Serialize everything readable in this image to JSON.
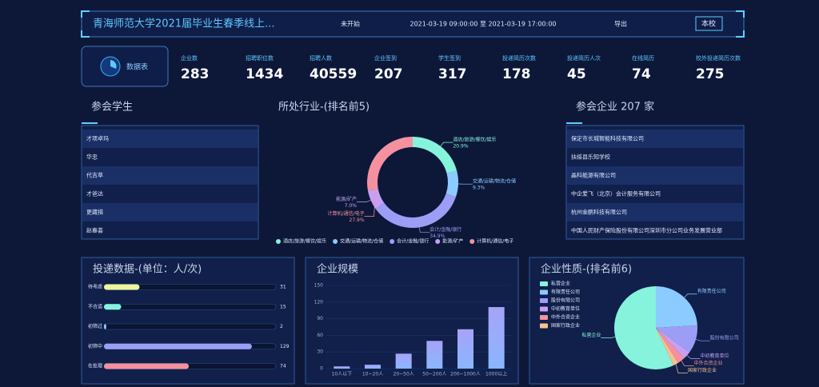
{
  "header": {
    "title": "青海师范大学2021届毕业生春季线上...",
    "status": "未开始",
    "time": "2021-03-19 09:00:00 至 2021-03-19 17:00:00",
    "export": "导出",
    "button": "本校"
  },
  "data_card": {
    "label": "数据表"
  },
  "stats": [
    {
      "label": "企业数",
      "value": 283
    },
    {
      "label": "招聘职位数",
      "value": 1434
    },
    {
      "label": "招聘人数",
      "value": 40559
    },
    {
      "label": "企业签到",
      "value": 207
    },
    {
      "label": "学生签到",
      "value": 317
    },
    {
      "label": "投递简历次数",
      "value": 178
    },
    {
      "label": "投递简历人次",
      "value": 45
    },
    {
      "label": "在线简历",
      "value": 74
    },
    {
      "label": "校外投递简历次数",
      "value": 275
    }
  ],
  "students": {
    "title": "参会学生",
    "rows": [
      "才项卓玛",
      "华忠",
      "代吉草",
      "才爸达",
      "更藏措",
      "赵春荟"
    ]
  },
  "companies": {
    "title": "参会企业 207 家",
    "rows": [
      "保定市长城智能科技有限公司",
      "扶绥县乐知学校",
      "晶科能源有限公司",
      "中企爱飞（北京）会计服务有限公司",
      "杭州金鹏科技有限公司",
      "中国人民财产保险股份有限公司深圳市分公司业务发展营业部"
    ]
  },
  "chart_data": [
    {
      "type": "donut",
      "title": "所处行业-(排名前5)",
      "categories": [
        "酒店/旅游/餐饮/娱乐",
        "交通/运输/物流/仓储",
        "会计/金融/银行",
        "能源/矿产",
        "计算机/通信/电子"
      ],
      "values": [
        20.9,
        9.3,
        34.9,
        7.0,
        27.9
      ],
      "value_labels": [
        "20.9%",
        "9.3%",
        "34.9%",
        "7.0%",
        "27.9%"
      ],
      "colors": [
        "#86f3dd",
        "#8ccbff",
        "#9c9ef6",
        "#c7a0f5",
        "#f5919f"
      ],
      "legend": "bottom"
    },
    {
      "type": "hbar",
      "title": "投递数据-(单位：人/次)",
      "categories": [
        "待考虑",
        "不合适",
        "初筛过",
        "初筛中",
        "在处理"
      ],
      "values": [
        31,
        15,
        2,
        129,
        74
      ],
      "colors": [
        "#eef59c",
        "#86f3dd",
        "#8ccbff",
        "#9c9ef6",
        "#f5919f"
      ],
      "xlim": [
        0,
        150
      ]
    },
    {
      "type": "bar",
      "title": "企业规模",
      "categories": [
        "10人以下",
        "10~20人",
        "20~50人",
        "50~200人",
        "200~1000人",
        "1000以上"
      ],
      "values": [
        4,
        7,
        27,
        50,
        71,
        111
      ],
      "color": "#9c9ef6",
      "ylim": [
        0,
        150
      ],
      "yticks": [
        0,
        30,
        60,
        90,
        120,
        150
      ],
      "grid": true
    },
    {
      "type": "pie",
      "title": "企业性质-(排名前6)",
      "categories": [
        "私营企业",
        "有限责任公司",
        "股份有限公司",
        "中初教育单位",
        "中外合资企业",
        "国家行政企业"
      ],
      "values": [
        57,
        24,
        11,
        3,
        3,
        2
      ],
      "colors": [
        "#86f3dd",
        "#8ccbff",
        "#9c9ef6",
        "#c7a0f5",
        "#f5919f",
        "#f5c291"
      ],
      "legend": "top-left"
    }
  ]
}
